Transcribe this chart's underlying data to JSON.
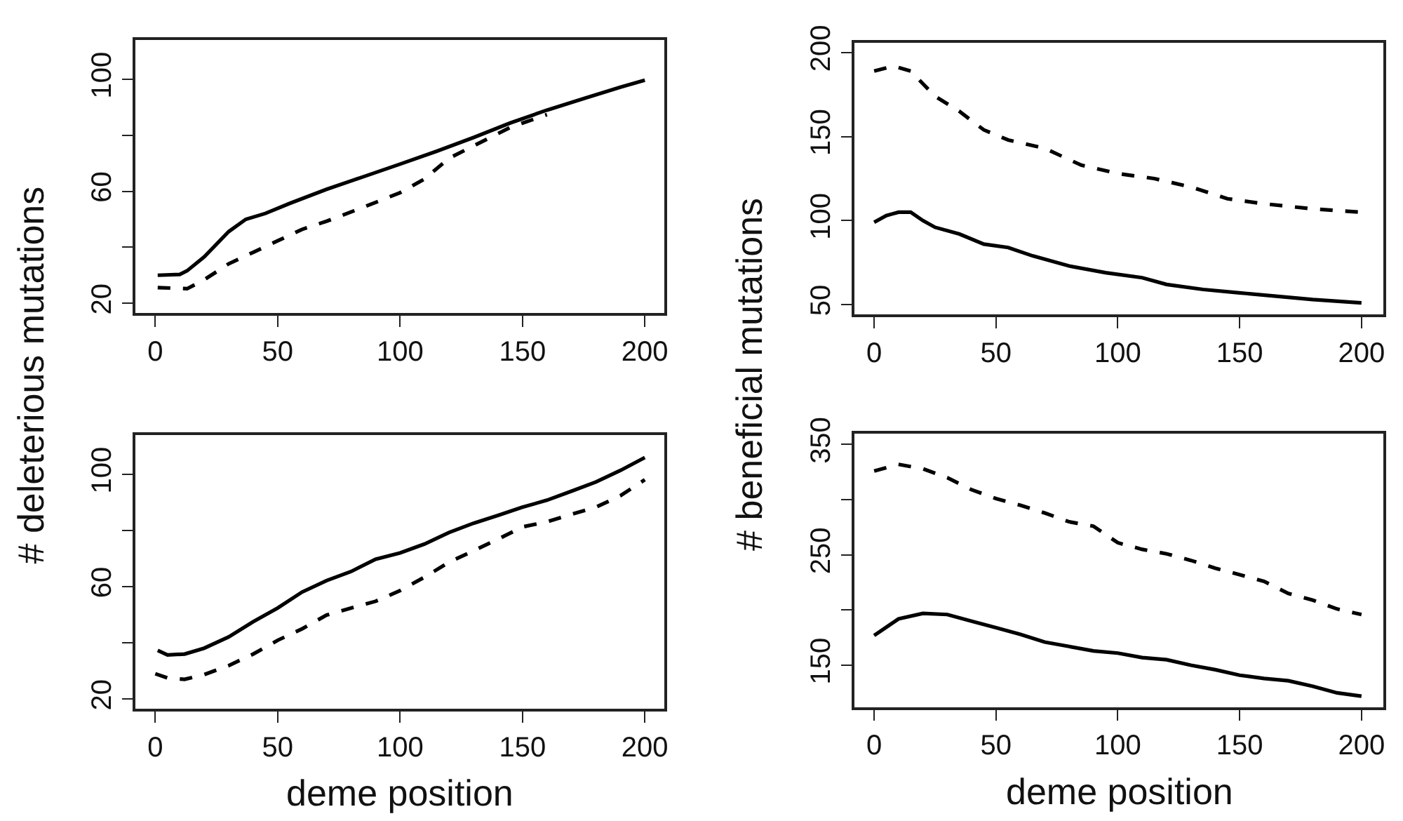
{
  "chart_data": [
    {
      "type": "line",
      "ylabel": "# deleterious mutations",
      "xlim": [
        -8,
        208
      ],
      "xticks": [
        0,
        50,
        100,
        150,
        200
      ],
      "ylim": [
        16.5,
        114
      ],
      "yticks": [
        20,
        {
          "value": 40,
          "label": null
        },
        60,
        {
          "value": 80,
          "label": null
        },
        100
      ],
      "grid": false,
      "series": [
        {
          "color": "#000000",
          "line_style": "solid",
          "x": [
            1,
            10,
            13,
            20,
            30,
            37,
            45,
            55,
            70,
            85,
            100,
            115,
            130,
            145,
            160,
            175,
            190,
            200
          ],
          "values": [
            30,
            30.3,
            31.6,
            36.6,
            45.6,
            50,
            52.1,
            55.7,
            60.7,
            65.2,
            69.7,
            74.3,
            79.2,
            84.4,
            89,
            93.1,
            97.2,
            99.7
          ]
        },
        {
          "color": "#000000",
          "line_style": "dashed",
          "x": [
            1,
            13,
            20,
            30,
            40,
            50,
            60,
            70,
            85,
            100,
            110,
            120,
            130,
            145,
            160
          ],
          "values": [
            25.6,
            25.2,
            28.4,
            34.1,
            38.2,
            42.3,
            46.4,
            49.3,
            54.3,
            59.5,
            64.4,
            71.8,
            76.2,
            82.8,
            87.4
          ]
        }
      ]
    },
    {
      "type": "line",
      "ylabel": "# beneficial mutations",
      "xlim": [
        -8,
        209
      ],
      "xticks": [
        0,
        50,
        100,
        150,
        200
      ],
      "ylim": [
        44,
        206
      ],
      "yticks": [
        50,
        100,
        150,
        200
      ],
      "grid": false,
      "series": [
        {
          "color": "#000000",
          "line_style": "solid",
          "x": [
            0,
            5,
            10,
            15,
            20,
            25,
            35,
            45,
            55,
            65,
            80,
            95,
            110,
            120,
            135,
            150,
            165,
            180,
            200
          ],
          "values": [
            99,
            103,
            105,
            105,
            100,
            96,
            92,
            86,
            84,
            79,
            73,
            69,
            66,
            62,
            59,
            57,
            55,
            53,
            51
          ]
        },
        {
          "color": "#000000",
          "line_style": "dashed",
          "x": [
            0,
            8,
            15,
            25,
            35,
            45,
            55,
            70,
            85,
            100,
            115,
            130,
            145,
            160,
            180,
            200
          ],
          "values": [
            189,
            192,
            189,
            174,
            165,
            154,
            148,
            143,
            133,
            128,
            125,
            120,
            113,
            110,
            107,
            105
          ]
        }
      ]
    },
    {
      "type": "line",
      "xlabel": "deme position",
      "xlim": [
        -8,
        208
      ],
      "xticks": [
        0,
        50,
        100,
        150,
        200
      ],
      "ylim": [
        16.5,
        114
      ],
      "yticks": [
        20,
        {
          "value": 40,
          "label": null
        },
        60,
        {
          "value": 80,
          "label": null
        },
        100
      ],
      "grid": false,
      "series": [
        {
          "color": "#000000",
          "line_style": "solid",
          "x": [
            1,
            5,
            12,
            20,
            30,
            40,
            50,
            60,
            70,
            80,
            90,
            100,
            110,
            120,
            130,
            140,
            150,
            160,
            170,
            180,
            190,
            200
          ],
          "values": [
            37.3,
            35.7,
            36,
            38.1,
            42.1,
            47.5,
            52.4,
            58.1,
            62.2,
            65.4,
            69.8,
            72,
            75.2,
            79.3,
            82.6,
            85.4,
            88.3,
            90.8,
            94,
            97.3,
            101.4,
            106
          ]
        },
        {
          "color": "#000000",
          "line_style": "dashed",
          "x": [
            0,
            5,
            12,
            20,
            30,
            40,
            50,
            60,
            70,
            80,
            90,
            100,
            110,
            120,
            130,
            140,
            150,
            160,
            170,
            180,
            190,
            200
          ],
          "values": [
            29,
            27.5,
            27,
            28.7,
            31.9,
            36,
            40.9,
            45,
            49.9,
            52.4,
            54.8,
            58.6,
            63.4,
            68.7,
            72.8,
            76.9,
            81.3,
            83.1,
            85.8,
            88.3,
            92.4,
            98.1
          ]
        }
      ]
    },
    {
      "type": "line",
      "xlabel": "deme position",
      "xlim": [
        -8,
        209
      ],
      "xticks": [
        0,
        50,
        100,
        150,
        200
      ],
      "ylim": [
        112,
        360
      ],
      "yticks": [
        150,
        {
          "value": 200,
          "label": null
        },
        250,
        {
          "value": 300,
          "label": null
        },
        350
      ],
      "grid": false,
      "series": [
        {
          "color": "#000000",
          "line_style": "solid",
          "x": [
            0,
            10,
            20,
            30,
            40,
            50,
            60,
            70,
            80,
            90,
            100,
            110,
            120,
            130,
            140,
            150,
            160,
            170,
            180,
            190,
            200
          ],
          "values": [
            177,
            192,
            197,
            196,
            190,
            184,
            178,
            171,
            167,
            163,
            161,
            157,
            155,
            150,
            146,
            141,
            138,
            136,
            131,
            125,
            122
          ]
        },
        {
          "color": "#000000",
          "line_style": "dashed",
          "x": [
            0,
            10,
            20,
            30,
            40,
            50,
            60,
            70,
            80,
            90,
            100,
            110,
            120,
            130,
            140,
            150,
            160,
            170,
            180,
            190,
            200
          ],
          "values": [
            326,
            332,
            328,
            320,
            309,
            301,
            295,
            288,
            280,
            276,
            261,
            255,
            251,
            245,
            238,
            232,
            226,
            215,
            209,
            201,
            196
          ]
        }
      ]
    }
  ]
}
